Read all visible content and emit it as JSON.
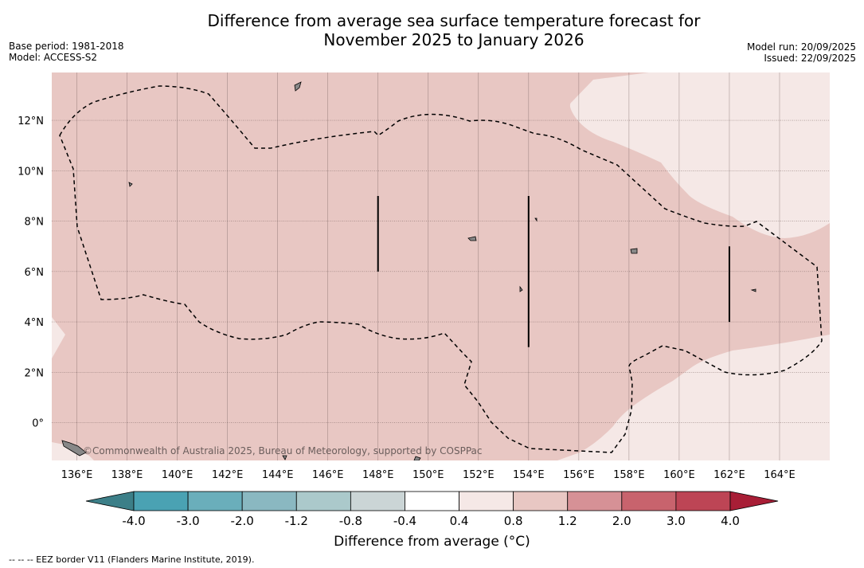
{
  "title": {
    "line1": "Difference from average sea surface temperature forecast for",
    "line2": "November 2025 to January 2026"
  },
  "meta": {
    "base_period": "Base period: 1981-2018",
    "model": "Model: ACCESS-S2",
    "model_run": "Model run: 20/09/2025",
    "issued": "Issued: 22/09/2025"
  },
  "map": {
    "lon_range": [
      135,
      166
    ],
    "lat_range": [
      -1.5,
      13.9
    ],
    "lon_ticks": [
      {
        "value": 136,
        "label": "136°E"
      },
      {
        "value": 138,
        "label": "138°E"
      },
      {
        "value": 140,
        "label": "140°E"
      },
      {
        "value": 142,
        "label": "142°E"
      },
      {
        "value": 144,
        "label": "144°E"
      },
      {
        "value": 146,
        "label": "146°E"
      },
      {
        "value": 148,
        "label": "148°E"
      },
      {
        "value": 150,
        "label": "150°E"
      },
      {
        "value": 152,
        "label": "152°E"
      },
      {
        "value": 154,
        "label": "154°E"
      },
      {
        "value": 156,
        "label": "156°E"
      },
      {
        "value": 158,
        "label": "158°E"
      },
      {
        "value": 160,
        "label": "160°E"
      },
      {
        "value": 162,
        "label": "162°E"
      },
      {
        "value": 164,
        "label": "164°E"
      }
    ],
    "lat_ticks": [
      {
        "value": 12,
        "label": "12°N"
      },
      {
        "value": 10,
        "label": "10°N"
      },
      {
        "value": 8,
        "label": "8°N"
      },
      {
        "value": 6,
        "label": "6°N"
      },
      {
        "value": 4,
        "label": "4°N"
      },
      {
        "value": 2,
        "label": "2°N"
      },
      {
        "value": 0,
        "label": "0°"
      }
    ],
    "credit": "©Commonwealth of Australia 2025, Bureau of Meteorology, supported by COSPPac",
    "colors": {
      "anomaly_0_8_1_2": "#e8c7c3",
      "anomaly_0_4_0_8": "#f5e8e6",
      "grid_line": "#6e5a58",
      "eez_border": "#000000",
      "land": "#888888"
    },
    "eez_segments": [
      {
        "lon": 148.0,
        "lat_top": 9.0,
        "lat_bottom": 6.0
      },
      {
        "lon": 154.0,
        "lat_top": 9.0,
        "lat_bottom": 3.0
      },
      {
        "lon": 162.0,
        "lat_top": 7.0,
        "lat_bottom": 4.0
      }
    ]
  },
  "colorbar": {
    "title": "Difference from average (°C)",
    "ticks": [
      "-4.0",
      "-3.0",
      "-2.0",
      "-1.2",
      "-0.8",
      "-0.4",
      "0.4",
      "0.8",
      "1.2",
      "2.0",
      "3.0",
      "4.0"
    ],
    "bins": [
      {
        "from": "-4.0",
        "to": "-3.0",
        "color": "#4aa2b3"
      },
      {
        "from": "-3.0",
        "to": "-2.0",
        "color": "#6aaebb"
      },
      {
        "from": "-2.0",
        "to": "-1.2",
        "color": "#8ab8c1"
      },
      {
        "from": "-1.2",
        "to": "-0.8",
        "color": "#abc9cb"
      },
      {
        "from": "-0.8",
        "to": "-0.4",
        "color": "#cbd5d6"
      },
      {
        "from": "-0.4",
        "to": "0.4",
        "color": "#ffffff"
      },
      {
        "from": "0.4",
        "to": "0.8",
        "color": "#f5e8e6"
      },
      {
        "from": "0.8",
        "to": "1.2",
        "color": "#e8c7c3"
      },
      {
        "from": "1.2",
        "to": "2.0",
        "color": "#d69196"
      },
      {
        "from": "2.0",
        "to": "3.0",
        "color": "#c8636d"
      },
      {
        "from": "3.0",
        "to": "4.0",
        "color": "#bd4555"
      }
    ],
    "extend_low_color": "#3c7f88",
    "extend_high_color": "#a81e36"
  },
  "footnote": "--  --  -- EEZ border V11 (Flanders Marine Institute, 2019)."
}
